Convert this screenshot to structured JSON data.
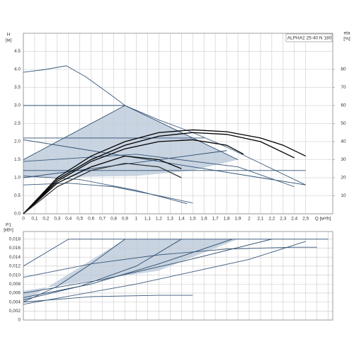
{
  "chart_data": [
    {
      "type": "line",
      "title": "ALPHA2 25-40 N 180",
      "x_label": "Q [м³/h]",
      "y_label": "H",
      "y_unit": "[м]",
      "y2_label": "eta",
      "y2_unit": "[%]",
      "xlim": [
        0,
        2.74
      ],
      "ylim": [
        0,
        5.0
      ],
      "y2lim": [
        0,
        100
      ],
      "grid": true,
      "xtick_labels": true,
      "xticks": [
        0,
        {
          "value": 0.1,
          "label": "0,1"
        },
        {
          "value": 0.2,
          "label": "0,2"
        },
        {
          "value": 0.3,
          "label": "0,3"
        },
        {
          "value": 0.4,
          "label": "0,4"
        },
        {
          "value": 0.5,
          "label": "0,5"
        },
        {
          "value": 0.6,
          "label": "0,6"
        },
        {
          "value": 0.7,
          "label": "0,7"
        },
        {
          "value": 0.8,
          "label": "0,8"
        },
        {
          "value": 0.9,
          "label": "0,9"
        },
        {
          "value": 1,
          "label": "1"
        },
        {
          "value": 1.1,
          "label": "1,1"
        },
        {
          "value": 1.2,
          "label": "1,2"
        },
        {
          "value": 1.3,
          "label": "1,3"
        },
        {
          "value": 1.4,
          "label": "1,4"
        },
        {
          "value": 1.5,
          "label": "1,5"
        },
        {
          "value": 1.6,
          "label": "1,6"
        },
        {
          "value": 1.7,
          "label": "1,7"
        },
        {
          "value": 1.8,
          "label": "1,8"
        },
        {
          "value": 1.9,
          "label": "1,9"
        },
        {
          "value": 2,
          "label": "2"
        },
        {
          "value": 2.1,
          "label": "2,1"
        },
        {
          "value": 2.2,
          "label": "2,2"
        },
        {
          "value": 2.3,
          "label": "2,3"
        },
        {
          "value": 2.4,
          "label": "2,4"
        },
        {
          "value": 2.5,
          "label": "2,5"
        }
      ],
      "yticks": [
        {
          "value": 0,
          "label": "0.0"
        },
        0.5,
        {
          "value": 1,
          "label": "1.0"
        },
        1.5,
        {
          "value": 2,
          "label": "2.0"
        },
        2.5,
        {
          "value": 3,
          "label": "3.0"
        },
        3.5,
        {
          "value": 4,
          "label": "4.0"
        },
        4.5
      ],
      "y2ticks": [
        10,
        20,
        30,
        40,
        50,
        60,
        70,
        80
      ],
      "areas": [
        {
          "color": "#c8d4e2",
          "x": [
            0,
            0.9,
            1.9,
            1.5,
            1.0,
            0
          ],
          "values": [
            1.5,
            3.0,
            1.5,
            1.2,
            1.05,
            1.0
          ]
        }
      ],
      "series": [
        {
          "color": "#3a5a7c",
          "x": [
            0,
            0.2,
            0.38,
            0.55,
            0.75,
            0.9,
            1.2,
            1.5,
            1.8,
            2.1,
            2.5
          ],
          "values": [
            3.92,
            4.0,
            4.1,
            3.8,
            3.35,
            3.0,
            2.6,
            2.25,
            1.85,
            1.4,
            0.8
          ]
        },
        {
          "color": "#2c4d70",
          "x": [
            0,
            0.9
          ],
          "values": [
            3.0,
            3.0
          ]
        },
        {
          "color": "#2c4d70",
          "x": [
            0,
            1.6
          ],
          "values": [
            2.1,
            2.1
          ]
        },
        {
          "color": "#2c4d70",
          "x": [
            0,
            2.5
          ],
          "values": [
            2.05,
            0.8
          ]
        },
        {
          "color": "#2c4d70",
          "x": [
            0,
            2.5
          ],
          "values": [
            1.2,
            1.2
          ]
        },
        {
          "color": "#2c4d70",
          "x": [
            0,
            1.8
          ],
          "values": [
            1.0,
            1.75
          ]
        },
        {
          "color": "#2c4d70",
          "x": [
            0,
            0.9,
            1.9
          ],
          "values": [
            1.5,
            3.0,
            1.5
          ]
        },
        {
          "color": "#3a5a7c",
          "x": [
            0,
            0.4,
            0.8,
            1.2,
            1.5
          ],
          "values": [
            0.8,
            0.85,
            0.75,
            0.5,
            0.3
          ]
        },
        {
          "color": "#3a5a7c",
          "x": [
            0,
            0.5,
            1.0,
            1.45
          ],
          "values": [
            1.05,
            0.95,
            0.65,
            0.28
          ]
        },
        {
          "color": "#3a5a7c",
          "x": [
            0,
            1.0,
            1.9,
            2.4
          ],
          "values": [
            1.45,
            1.65,
            1.3,
            0.75
          ]
        },
        {
          "color": "#000000",
          "axis": "y2",
          "x": [
            0,
            0.3,
            0.6,
            0.9,
            1.2,
            1.5,
            1.8,
            2.1,
            2.3,
            2.5
          ],
          "values": [
            0,
            20,
            32,
            40,
            45,
            46.5,
            45.5,
            42,
            38,
            32
          ]
        },
        {
          "color": "#000000",
          "axis": "y2",
          "x": [
            0,
            0.3,
            0.6,
            0.9,
            1.2,
            1.5,
            1.8,
            2.1,
            2.4
          ],
          "values": [
            0,
            19,
            30,
            38,
            43,
            45,
            44,
            40,
            31
          ]
        },
        {
          "color": "#000000",
          "axis": "y2",
          "x": [
            0,
            0.3,
            0.6,
            0.9,
            1.2,
            1.5,
            1.8,
            1.95
          ],
          "values": [
            0,
            18,
            29,
            36,
            40,
            41,
            38,
            33
          ]
        },
        {
          "color": "#000000",
          "axis": "y2",
          "x": [
            0,
            0.3,
            0.6,
            0.9,
            1.2,
            1.4
          ],
          "values": [
            0,
            17,
            26,
            32,
            30,
            25
          ]
        },
        {
          "color": "#333333",
          "axis": "y2",
          "x": [
            0,
            0.3,
            0.6,
            0.9,
            1.2,
            1.4
          ],
          "values": [
            0,
            15,
            24,
            28,
            26,
            20
          ]
        }
      ]
    },
    {
      "type": "line",
      "y_label": "P1",
      "y_unit": "[кВт]",
      "xlim": [
        0,
        2.74
      ],
      "ylim": [
        0,
        0.0197
      ],
      "grid": true,
      "xtick_labels": false,
      "xticks": [
        0,
        0.1,
        0.2,
        0.3,
        0.4,
        0.5,
        0.6,
        0.7,
        0.8,
        0.9,
        1,
        1.1,
        1.2,
        1.3,
        1.4,
        1.5,
        1.6,
        1.7,
        1.8,
        1.9,
        2,
        2.1,
        2.2,
        2.3,
        2.4,
        2.5,
        2.6,
        2.7
      ],
      "yticks": [
        0,
        {
          "value": 0.002,
          "label": "0,002"
        },
        {
          "value": 0.004,
          "label": "0,004"
        },
        {
          "value": 0.006,
          "label": "0,006"
        },
        {
          "value": 0.008,
          "label": "0,008"
        },
        {
          "value": 0.01,
          "label": "0,010"
        },
        {
          "value": 0.012,
          "label": "0,012"
        },
        {
          "value": 0.014,
          "label": "0,014"
        },
        {
          "value": 0.016,
          "label": "0,016"
        },
        {
          "value": 0.018,
          "label": "0,018"
        }
      ],
      "areas": [
        {
          "color": "#c8d4e2",
          "x": [
            0,
            0.9,
            1.9,
            1.2,
            0
          ],
          "values": [
            0.004,
            0.018,
            0.018,
            0.011,
            0.0065
          ]
        }
      ],
      "series": [
        {
          "color": "#2c4d70",
          "x": [
            0,
            0.4,
            2.7
          ],
          "values": [
            0.012,
            0.018,
            0.018
          ]
        },
        {
          "color": "#2c4d70",
          "x": [
            0,
            0.3,
            0.6,
            0.9
          ],
          "values": [
            0.004,
            0.0075,
            0.0125,
            0.018
          ]
        },
        {
          "color": "#2c4d70",
          "x": [
            0,
            0.5,
            1.0,
            1.4
          ],
          "values": [
            0.0045,
            0.0075,
            0.012,
            0.018
          ]
        },
        {
          "color": "#2c4d70",
          "x": [
            0,
            0.6,
            1.2,
            1.85
          ],
          "values": [
            0.005,
            0.008,
            0.0125,
            0.018
          ]
        },
        {
          "color": "#2c4d70",
          "x": [
            0,
            0.7,
            1.4,
            2.2
          ],
          "values": [
            0.006,
            0.009,
            0.013,
            0.018
          ]
        },
        {
          "color": "#3a5a7c",
          "x": [
            0,
            0.6,
            1.2,
            1.8,
            2.4,
            2.6
          ],
          "values": [
            0.0095,
            0.0125,
            0.0145,
            0.0158,
            0.0162,
            0.0162
          ]
        },
        {
          "color": "#3a5a7c",
          "x": [
            0,
            0.6,
            1.2,
            1.5
          ],
          "values": [
            0.004,
            0.0052,
            0.0055,
            0.0055
          ]
        },
        {
          "color": "#3a5a7c",
          "x": [
            0,
            1.0,
            2.0,
            2.5
          ],
          "values": [
            0.0035,
            0.008,
            0.0135,
            0.0175
          ]
        }
      ]
    }
  ]
}
